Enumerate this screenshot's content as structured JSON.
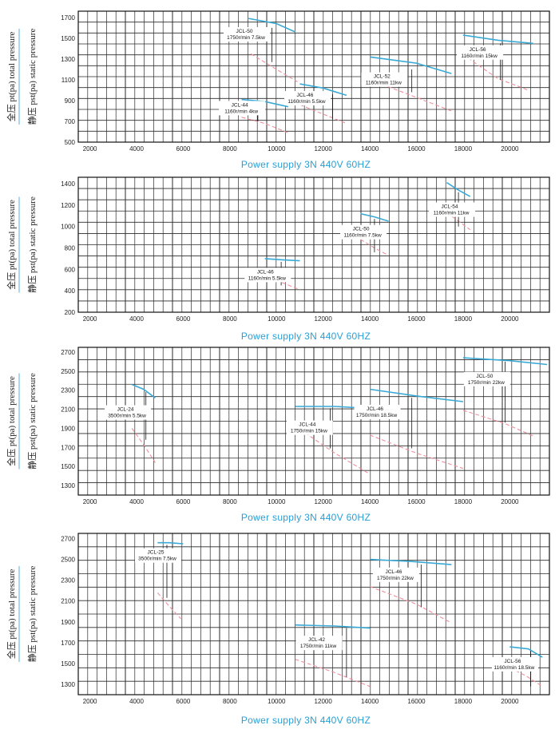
{
  "chart_data": [
    {
      "type": "line",
      "caption": "Power supply  3N 440V  60HZ",
      "ylabel_total": "全压 pt(pa)  total pressure",
      "ylabel_static": "静压 pst(pa) static pressure",
      "xlim": [
        1500,
        21700
      ],
      "ylim": [
        500,
        1760
      ],
      "xticks": [
        2000,
        4000,
        6000,
        8000,
        10000,
        12000,
        14000,
        16000,
        18000,
        20000
      ],
      "yticks": [
        500,
        700,
        900,
        1100,
        1300,
        1500,
        1700
      ],
      "grid": true,
      "series": [
        {
          "name": "JCL-50",
          "label1": "JCL-50",
          "label2": "1750r/min 7.5kw",
          "total": [
            [
              8800,
              1690
            ],
            [
              10000,
              1640
            ],
            [
              10800,
              1560
            ]
          ],
          "static": [
            [
              8900,
              1350
            ],
            [
              10000,
              1200
            ],
            [
              10900,
              1080
            ]
          ],
          "label_at": [
            7800,
            1545
          ],
          "leader": [
            [
              9800,
              1600
            ],
            [
              9800,
              1270
            ]
          ]
        },
        {
          "name": "JCL-44",
          "label1": "JCL-44",
          "label2": "1160r/min 4kw",
          "total": [
            [
              8500,
              910
            ],
            [
              9500,
              890
            ],
            [
              10500,
              840
            ]
          ],
          "static": [
            [
              8500,
              740
            ],
            [
              9500,
              680
            ],
            [
              10500,
              590
            ]
          ],
          "label_at": [
            7600,
            835
          ],
          "leader": [
            [
              9200,
              870
            ],
            [
              9200,
              700
            ]
          ]
        },
        {
          "name": "JCL-46",
          "label1": "JCL-46",
          "label2": "1160r/min 5.5kw",
          "total": [
            [
              11000,
              1060
            ],
            [
              12000,
              1020
            ],
            [
              13000,
              950
            ]
          ],
          "static": [
            [
              11000,
              860
            ],
            [
              12000,
              770
            ],
            [
              13000,
              680
            ]
          ],
          "label_at": [
            10400,
            930
          ],
          "leader": [
            [
              12400,
              960
            ],
            [
              12400,
              720
            ]
          ]
        },
        {
          "name": "JCL-52",
          "label1": "JCL-52",
          "label2": "1160r/min 11kw",
          "total": [
            [
              14000,
              1320
            ],
            [
              16000,
              1260
            ],
            [
              17500,
              1160
            ]
          ],
          "static": [
            [
              14000,
              1100
            ],
            [
              16000,
              930
            ],
            [
              17500,
              800
            ]
          ],
          "label_at": [
            13700,
            1110
          ],
          "leader": [
            [
              15800,
              1200
            ],
            [
              15800,
              980
            ]
          ]
        },
        {
          "name": "JCL-56",
          "label1": "JCL-56",
          "label2": "1160r/min 15kw",
          "total": [
            [
              18000,
              1530
            ],
            [
              19500,
              1480
            ],
            [
              21000,
              1450
            ]
          ],
          "static": [
            [
              18200,
              1310
            ],
            [
              19500,
              1110
            ],
            [
              20800,
              1000
            ]
          ],
          "label_at": [
            17800,
            1370
          ],
          "leader": [
            [
              19600,
              1450
            ],
            [
              19600,
              1100
            ]
          ]
        }
      ]
    },
    {
      "type": "line",
      "caption": "Power supply  3N 440V  60HZ",
      "ylabel_total": "全压 pt(pa)  total pressure",
      "ylabel_static": "静压 pst(pa) static pressure",
      "xlim": [
        1500,
        21700
      ],
      "ylim": [
        200,
        1460
      ],
      "xticks": [
        2000,
        4000,
        6000,
        8000,
        10000,
        12000,
        14000,
        16000,
        18000,
        20000
      ],
      "yticks": [
        200,
        400,
        600,
        800,
        1000,
        1200,
        1400
      ],
      "grid": true,
      "series": [
        {
          "name": "JCL-46",
          "label1": "JCL-46",
          "label2": "1160r/min 5.5kw",
          "total": [
            [
              9500,
              700
            ],
            [
              10200,
              690
            ],
            [
              11000,
              680
            ]
          ],
          "static": [
            [
              9500,
              560
            ],
            [
              10200,
              480
            ],
            [
              11000,
              410
            ]
          ],
          "label_at": [
            8700,
            555
          ],
          "leader": [
            [
              10200,
              670
            ],
            [
              10200,
              450
            ]
          ]
        },
        {
          "name": "JCL-50",
          "label1": "JCL-50",
          "label2": "1160r/min 7.5kw",
          "total": [
            [
              13600,
              1120
            ],
            [
              14200,
              1090
            ],
            [
              14800,
              1050
            ]
          ],
          "static": [
            [
              13600,
              880
            ],
            [
              14200,
              800
            ],
            [
              14800,
              730
            ]
          ],
          "label_at": [
            12800,
            955
          ],
          "leader": [
            [
              14200,
              1070
            ],
            [
              14200,
              760
            ]
          ]
        },
        {
          "name": "JCL-54",
          "label1": "JCL-54",
          "label2": "1160r/min 11kw",
          "total": [
            [
              17300,
              1410
            ],
            [
              17800,
              1340
            ],
            [
              18300,
              1280
            ]
          ],
          "static": [
            [
              17300,
              1130
            ],
            [
              17800,
              1050
            ],
            [
              18300,
              970
            ]
          ],
          "label_at": [
            16600,
            1165
          ],
          "leader": [
            [
              17800,
              1320
            ],
            [
              17800,
              1000
            ]
          ]
        }
      ]
    },
    {
      "type": "line",
      "caption": "Power supply  3N 440V  60HZ",
      "ylabel_total": "全压 pt(pa)  total pressure",
      "ylabel_static": "静压 pst(pa) static pressure",
      "xlim": [
        1500,
        21700
      ],
      "ylim": [
        1200,
        2750
      ],
      "xticks": [
        2000,
        4000,
        6000,
        8000,
        10000,
        12000,
        14000,
        16000,
        18000,
        20000
      ],
      "yticks": [
        1300,
        1500,
        1700,
        1900,
        2100,
        2300,
        2500,
        2700
      ],
      "grid": true,
      "series": [
        {
          "name": "JCL-24",
          "label1": "JCL-24",
          "label2": "3500r/min 5.5kw",
          "total": [
            [
              3800,
              2360
            ],
            [
              4300,
              2310
            ],
            [
              4800,
              2220
            ]
          ],
          "static": [
            [
              3800,
              1900
            ],
            [
              4300,
              1730
            ],
            [
              4800,
              1540
            ]
          ],
          "label_at": [
            2700,
            2075
          ],
          "leader": [
            [
              4400,
              2280
            ],
            [
              4400,
              1780
            ]
          ]
        },
        {
          "name": "JCL-44",
          "label1": "JCL-44",
          "label2": "1750r/min 15kw",
          "total": [
            [
              10800,
              2130
            ],
            [
              12500,
              2130
            ],
            [
              14000,
              2110
            ]
          ],
          "static": [
            [
              11000,
              1890
            ],
            [
              12500,
              1640
            ],
            [
              14000,
              1420
            ]
          ],
          "label_at": [
            10500,
            1915
          ],
          "leader": [
            [
              12300,
              2110
            ],
            [
              12300,
              1690
            ]
          ]
        },
        {
          "name": "JCL-46",
          "label1": "JCL-46",
          "label2": "1750r/min 18.5kw",
          "total": [
            [
              14000,
              2310
            ],
            [
              16000,
              2240
            ],
            [
              18000,
              2180
            ]
          ],
          "static": [
            [
              14000,
              1830
            ],
            [
              16000,
              1640
            ],
            [
              18000,
              1480
            ]
          ],
          "label_at": [
            13400,
            2080
          ],
          "leader": [
            [
              15800,
              2220
            ],
            [
              15800,
              1690
            ]
          ]
        },
        {
          "name": "JCL-50",
          "label1": "JCL-50",
          "label2": "1750r/min 22kw",
          "total": [
            [
              18000,
              2640
            ],
            [
              20000,
              2610
            ],
            [
              21600,
              2570
            ]
          ],
          "static": [
            [
              18000,
              2090
            ],
            [
              19800,
              1950
            ],
            [
              21000,
              1820
            ]
          ],
          "label_at": [
            18100,
            2425
          ],
          "leader": [
            [
              19800,
              2600
            ],
            [
              19800,
              1960
            ]
          ]
        }
      ]
    },
    {
      "type": "line",
      "caption": "Power supply  3N 440V  60HZ",
      "ylabel_total": "全压 pt(pa)  total pressure",
      "ylabel_static": "静压 pst(pa) static pressure",
      "xlim": [
        1500,
        21700
      ],
      "ylim": [
        1200,
        2750
      ],
      "xticks": [
        2000,
        4000,
        6000,
        8000,
        10000,
        12000,
        14000,
        16000,
        18000,
        20000
      ],
      "yticks": [
        1300,
        1500,
        1700,
        1900,
        2100,
        2300,
        2500,
        2700
      ],
      "grid": true,
      "series": [
        {
          "name": "JCL-25",
          "label1": "JCL-25",
          "label2": "3500r/min 7.5kw",
          "total": [
            [
              4900,
              2660
            ],
            [
              5400,
              2660
            ],
            [
              6000,
              2650
            ]
          ],
          "static": [
            [
              4900,
              2180
            ],
            [
              5400,
              2050
            ],
            [
              5900,
              1930
            ]
          ],
          "label_at": [
            4000,
            2545
          ],
          "leader": [
            [
              5300,
              2640
            ],
            [
              5300,
              2130
            ]
          ]
        },
        {
          "name": "JCL-42",
          "label1": "JCL-42",
          "label2": "1750r/min 11kw",
          "total": [
            [
              10800,
              1870
            ],
            [
              12500,
              1860
            ],
            [
              14000,
              1840
            ]
          ],
          "static": [
            [
              10800,
              1540
            ],
            [
              12400,
              1420
            ],
            [
              14000,
              1280
            ]
          ],
          "label_at": [
            10900,
            1705
          ],
          "leader": [
            [
              13000,
              1840
            ],
            [
              13000,
              1370
            ]
          ]
        },
        {
          "name": "JCL-46",
          "label1": "JCL-46",
          "label2": "1750r/min 22kw",
          "total": [
            [
              14000,
              2500
            ],
            [
              15800,
              2480
            ],
            [
              17500,
              2450
            ]
          ],
          "static": [
            [
              14000,
              2240
            ],
            [
              16000,
              2070
            ],
            [
              17500,
              1890
            ]
          ],
          "label_at": [
            14200,
            2360
          ],
          "leader": [
            [
              16200,
              2450
            ],
            [
              16200,
              2040
            ]
          ]
        },
        {
          "name": "JCL-56",
          "label1": "JCL-56",
          "label2": "1160r/min 18.5kw",
          "total": [
            [
              20000,
              1660
            ],
            [
              20800,
              1640
            ],
            [
              21400,
              1560
            ]
          ],
          "static": [
            [
              20000,
              1460
            ],
            [
              20700,
              1380
            ],
            [
              21400,
              1280
            ]
          ],
          "label_at": [
            19300,
            1500
          ],
          "leader": [
            [
              20900,
              1620
            ],
            [
              20900,
              1280
            ]
          ]
        }
      ]
    }
  ]
}
